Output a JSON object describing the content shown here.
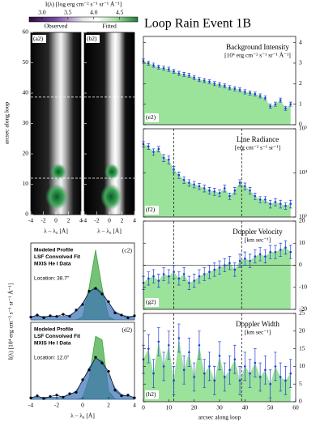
{
  "title": "Loop Rain Event 1B",
  "chart_data": [
    {
      "type": "heatmap",
      "colorbar_title": "I(λ) [log erg cm⁻² s⁻¹ sr⁻¹ Å⁻¹]",
      "clim": [
        2.75,
        4.85
      ],
      "cticks": [
        {
          "value": 3,
          "label": "3.0"
        },
        3.5,
        {
          "value": 4,
          "label": "4.0"
        },
        4.5
      ],
      "panels": [
        {
          "label": "(a2)",
          "title": "Observed"
        },
        {
          "label": "(b2)",
          "title": "Fitted"
        }
      ],
      "xlim": [
        -4,
        4
      ],
      "xticks": [
        -4,
        -2,
        0,
        2,
        4
      ],
      "xlabel": "λ – λ₀ [Å]",
      "ylim": [
        0,
        60
      ],
      "yticks": [
        0,
        10,
        20,
        30,
        40,
        50,
        60
      ],
      "ylabel": "arcsec along loop",
      "markers": [
        12,
        38.7
      ]
    },
    {
      "type": "line",
      "label": "(c2)",
      "annotation": "Location: 38.7\"",
      "ylabel": "I(λ) [10⁴ erg cm⁻² s⁻¹ sr⁻¹ Å⁻¹]",
      "xlim": [
        -4,
        4
      ],
      "ylim": [
        0,
        1.1
      ],
      "x": [
        -4,
        -3.5,
        -3,
        -2.5,
        -2,
        -1.5,
        -1,
        -0.5,
        0,
        0.5,
        1,
        1.5,
        2,
        2.5,
        3,
        3.5,
        4
      ],
      "series": [
        {
          "name": "Modeled Profile",
          "color": "#3aa63a",
          "style": "area",
          "values": [
            0,
            0,
            0,
            0,
            0,
            0,
            0,
            0.001,
            0.044,
            0.46,
            1,
            0.46,
            0.044,
            0.001,
            0,
            0,
            0
          ]
        },
        {
          "name": "LSF Convolved Fit",
          "color": "#3b6fb6",
          "style": "area",
          "values": [
            0.05,
            0.05,
            0.05,
            0.05,
            0.05,
            0.052,
            0.068,
            0.122,
            0.242,
            0.395,
            0.47,
            0.395,
            0.242,
            0.122,
            0.068,
            0.052,
            0.05
          ]
        },
        {
          "name": "MXIS He I Data",
          "color": "#000000",
          "style": "points",
          "values": [
            0.04,
            0.07,
            0.03,
            0.06,
            0.05,
            0.08,
            0.05,
            0.14,
            0.22,
            0.41,
            0.45,
            0.37,
            0.26,
            0.1,
            0.07,
            0.03,
            0.06
          ]
        }
      ]
    },
    {
      "type": "line",
      "label": "(d2)",
      "annotation": "Location: 12.0\"",
      "xlim": [
        -4,
        4
      ],
      "ylim": [
        0,
        1.1
      ],
      "xticks": [
        -4,
        -2,
        0,
        2,
        4
      ],
      "xlabel": "λ – λ₀ [Å]",
      "x": [
        -4,
        -3.5,
        -3,
        -2.5,
        -2,
        -1.5,
        -1,
        -0.5,
        0,
        0.5,
        1,
        1.5,
        2,
        2.5,
        3,
        3.5,
        4
      ],
      "series": [
        {
          "name": "Modeled Profile",
          "color": "#3aa63a",
          "style": "area",
          "values": [
            0,
            0,
            0,
            0,
            0,
            0,
            0,
            0,
            0.02,
            0.3,
            0.9,
            0.85,
            0.12,
            0.004,
            0,
            0,
            0
          ]
        },
        {
          "name": "LSF Convolved Fit",
          "color": "#3b6fb6",
          "style": "area",
          "values": [
            0.03,
            0.03,
            0.03,
            0.03,
            0.03,
            0.04,
            0.06,
            0.12,
            0.26,
            0.45,
            0.58,
            0.55,
            0.36,
            0.16,
            0.07,
            0.04,
            0.03
          ]
        },
        {
          "name": "MXIS He I Data",
          "color": "#000000",
          "style": "points",
          "values": [
            0.02,
            0.05,
            0.01,
            0.04,
            0.06,
            0.03,
            0.08,
            0.1,
            0.28,
            0.42,
            0.6,
            0.52,
            0.4,
            0.13,
            0.05,
            0.06,
            0.02
          ]
        }
      ]
    },
    {
      "type": "errorbar",
      "label": "(e2)",
      "title": [
        "Background Intensity",
        "[10⁴ erg cm⁻² s⁻¹ sr⁻¹ Å⁻¹]"
      ],
      "color": "#1f3fd6",
      "fill": "#9be39b",
      "xlim": [
        0,
        60
      ],
      "y2lim": [
        0,
        4.3
      ],
      "y2ticks": [
        0,
        1,
        2,
        3,
        4
      ],
      "x": [
        0,
        2,
        4,
        6,
        8,
        10,
        12,
        14,
        16,
        18,
        20,
        22,
        24,
        26,
        28,
        30,
        32,
        34,
        36,
        38,
        40,
        42,
        44,
        46,
        48,
        50,
        52,
        54,
        56,
        58
      ],
      "values": [
        3.1,
        3.0,
        2.9,
        2.8,
        2.75,
        2.7,
        2.6,
        2.5,
        2.45,
        2.4,
        2.3,
        2.2,
        2.15,
        2.1,
        2.0,
        1.95,
        1.9,
        1.8,
        1.75,
        1.7,
        1.6,
        1.55,
        1.5,
        1.4,
        1.3,
        0.9,
        1.0,
        1.2,
        0.8,
        1.0
      ],
      "errors": [
        0.1,
        0.1,
        0.1,
        0.1,
        0.1,
        0.1,
        0.1,
        0.1,
        0.1,
        0.1,
        0.1,
        0.1,
        0.1,
        0.1,
        0.1,
        0.1,
        0.1,
        0.1,
        0.1,
        0.1,
        0.1,
        0.1,
        0.1,
        0.1,
        0.1,
        0.1,
        0.1,
        0.1,
        0.1,
        0.1
      ]
    },
    {
      "type": "errorbar",
      "label": "(f2)",
      "title": [
        "Line Radiance",
        "[erg cm⁻² s⁻¹ sr⁻¹]"
      ],
      "log": true,
      "color": "#1f3fd6",
      "fill": "#9be39b",
      "xlim": [
        0,
        60
      ],
      "y2lim": [
        1000,
        100000
      ],
      "y2ticks": [
        {
          "value": 1000,
          "label": "10³"
        },
        {
          "value": 10000,
          "label": "10⁴"
        },
        {
          "value": 100000,
          "label": "10⁵"
        }
      ],
      "markers": [
        12,
        38.7
      ],
      "x": [
        0,
        2,
        4,
        6,
        8,
        10,
        12,
        14,
        16,
        18,
        20,
        22,
        24,
        26,
        28,
        30,
        32,
        34,
        36,
        38,
        40,
        42,
        44,
        46,
        48,
        50,
        52,
        54,
        56,
        58
      ],
      "values": [
        45000,
        40000,
        30000,
        35000,
        22000,
        20000,
        12000,
        9000,
        7000,
        6000,
        5500,
        5000,
        4500,
        4000,
        3800,
        3500,
        4500,
        3000,
        4000,
        6000,
        5000,
        4000,
        3000,
        2500,
        2500,
        2000,
        2200,
        2000,
        1800,
        2000
      ],
      "errors": [
        6000,
        6000,
        5000,
        5000,
        4000,
        4000,
        2000,
        1500,
        1200,
        1000,
        900,
        800,
        800,
        700,
        700,
        600,
        800,
        500,
        700,
        1000,
        900,
        700,
        500,
        400,
        400,
        400,
        400,
        400,
        300,
        400
      ]
    },
    {
      "type": "errorbar",
      "label": "(g2)",
      "title": [
        "Doppler Velocity",
        "[km sec⁻¹]"
      ],
      "hline": 0,
      "color": "#1f3fd6",
      "fill": "#9be39b",
      "xlim": [
        0,
        60
      ],
      "y2lim": [
        -20,
        20
      ],
      "y2ticks": [
        -20,
        -10,
        0,
        10,
        20
      ],
      "markers": [
        12,
        38.7
      ],
      "x": [
        0,
        2,
        4,
        6,
        8,
        10,
        12,
        14,
        16,
        18,
        20,
        22,
        24,
        26,
        28,
        30,
        32,
        34,
        36,
        38,
        40,
        42,
        44,
        46,
        48,
        50,
        52,
        54,
        56,
        58
      ],
      "values": [
        -8,
        -6,
        -5,
        -7,
        -4,
        -5,
        -3,
        -6,
        -4,
        -8,
        -7,
        -5,
        -4,
        -3,
        -2,
        -1,
        0,
        1,
        -2,
        2,
        3,
        2,
        4,
        5,
        4,
        6,
        6,
        7,
        8,
        6
      ],
      "errors": [
        3,
        3,
        3,
        3,
        3,
        3,
        3,
        3,
        3,
        3,
        3,
        3,
        3,
        3,
        3,
        3,
        3,
        3,
        3,
        3,
        3,
        3,
        3,
        3,
        3,
        3,
        3,
        3,
        3,
        3
      ]
    },
    {
      "type": "errorbar",
      "label": "(h2)",
      "title": [
        "Doppler Width",
        "[km sec⁻¹]"
      ],
      "color": "#1f3fd6",
      "fill": "#9be39b",
      "xlim": [
        0,
        60
      ],
      "y2lim": [
        0,
        25
      ],
      "y2ticks": [
        0,
        5,
        10,
        15,
        20,
        25
      ],
      "xticks": [
        0,
        10,
        20,
        30,
        40,
        50,
        60
      ],
      "xlabel": "arcsec along loop",
      "markers": [
        12,
        38.7
      ],
      "x": [
        0,
        2,
        4,
        6,
        8,
        10,
        12,
        14,
        16,
        18,
        20,
        22,
        24,
        26,
        28,
        30,
        32,
        34,
        36,
        38,
        40,
        42,
        44,
        46,
        48,
        50,
        52,
        54,
        56,
        58
      ],
      "values": [
        12,
        15,
        8,
        17,
        10,
        16,
        6,
        18,
        9,
        14,
        7,
        16,
        8,
        10,
        6,
        13,
        7,
        9,
        12,
        6,
        10,
        8,
        11,
        7,
        9,
        5,
        10,
        7,
        6,
        8
      ],
      "errors": [
        4,
        4,
        4,
        4,
        4,
        4,
        4,
        4,
        4,
        4,
        4,
        4,
        4,
        4,
        4,
        4,
        4,
        4,
        4,
        4,
        4,
        4,
        4,
        4,
        4,
        4,
        4,
        4,
        4,
        4
      ]
    }
  ]
}
